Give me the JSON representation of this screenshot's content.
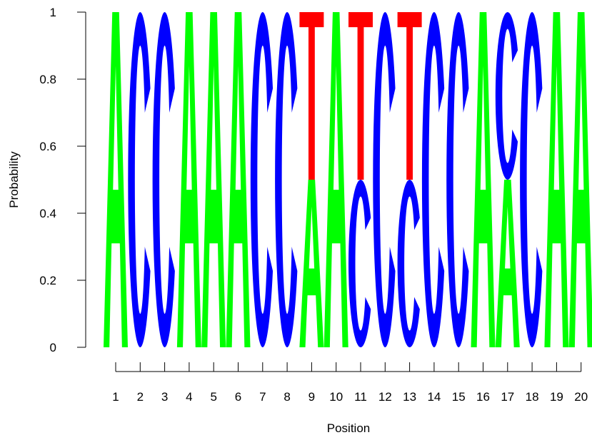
{
  "chart_data": {
    "type": "sequence-logo",
    "title": "",
    "xlabel": "Position",
    "ylabel": "Probability",
    "ylim": [
      0,
      1
    ],
    "y_ticks": [
      "0",
      "0.2",
      "0.4",
      "0.6",
      "0.8",
      "1"
    ],
    "x_ticks": [
      "1",
      "2",
      "3",
      "4",
      "5",
      "6",
      "7",
      "8",
      "9",
      "10",
      "11",
      "12",
      "13",
      "14",
      "15",
      "16",
      "17",
      "18",
      "19",
      "20"
    ],
    "colors": {
      "A": "#00ff00",
      "C": "#0000ff",
      "G": "#ffa500",
      "T": "#ff0000"
    },
    "positions": [
      {
        "position": 1,
        "letters": [
          {
            "base": "A",
            "prob": 1.0
          }
        ]
      },
      {
        "position": 2,
        "letters": [
          {
            "base": "C",
            "prob": 1.0
          }
        ]
      },
      {
        "position": 3,
        "letters": [
          {
            "base": "C",
            "prob": 1.0
          }
        ]
      },
      {
        "position": 4,
        "letters": [
          {
            "base": "A",
            "prob": 1.0
          }
        ]
      },
      {
        "position": 5,
        "letters": [
          {
            "base": "A",
            "prob": 1.0
          }
        ]
      },
      {
        "position": 6,
        "letters": [
          {
            "base": "A",
            "prob": 1.0
          }
        ]
      },
      {
        "position": 7,
        "letters": [
          {
            "base": "C",
            "prob": 1.0
          }
        ]
      },
      {
        "position": 8,
        "letters": [
          {
            "base": "C",
            "prob": 1.0
          }
        ]
      },
      {
        "position": 9,
        "letters": [
          {
            "base": "A",
            "prob": 0.5
          },
          {
            "base": "T",
            "prob": 0.5
          }
        ]
      },
      {
        "position": 10,
        "letters": [
          {
            "base": "A",
            "prob": 1.0
          }
        ]
      },
      {
        "position": 11,
        "letters": [
          {
            "base": "C",
            "prob": 0.5
          },
          {
            "base": "T",
            "prob": 0.5
          }
        ]
      },
      {
        "position": 12,
        "letters": [
          {
            "base": "C",
            "prob": 1.0
          }
        ]
      },
      {
        "position": 13,
        "letters": [
          {
            "base": "C",
            "prob": 0.5
          },
          {
            "base": "T",
            "prob": 0.5
          }
        ]
      },
      {
        "position": 14,
        "letters": [
          {
            "base": "C",
            "prob": 1.0
          }
        ]
      },
      {
        "position": 15,
        "letters": [
          {
            "base": "C",
            "prob": 1.0
          }
        ]
      },
      {
        "position": 16,
        "letters": [
          {
            "base": "A",
            "prob": 1.0
          }
        ]
      },
      {
        "position": 17,
        "letters": [
          {
            "base": "A",
            "prob": 0.5
          },
          {
            "base": "C",
            "prob": 0.5
          }
        ]
      },
      {
        "position": 18,
        "letters": [
          {
            "base": "C",
            "prob": 1.0
          }
        ]
      },
      {
        "position": 19,
        "letters": [
          {
            "base": "A",
            "prob": 1.0
          }
        ]
      },
      {
        "position": 20,
        "letters": [
          {
            "base": "A",
            "prob": 1.0
          }
        ]
      }
    ]
  }
}
